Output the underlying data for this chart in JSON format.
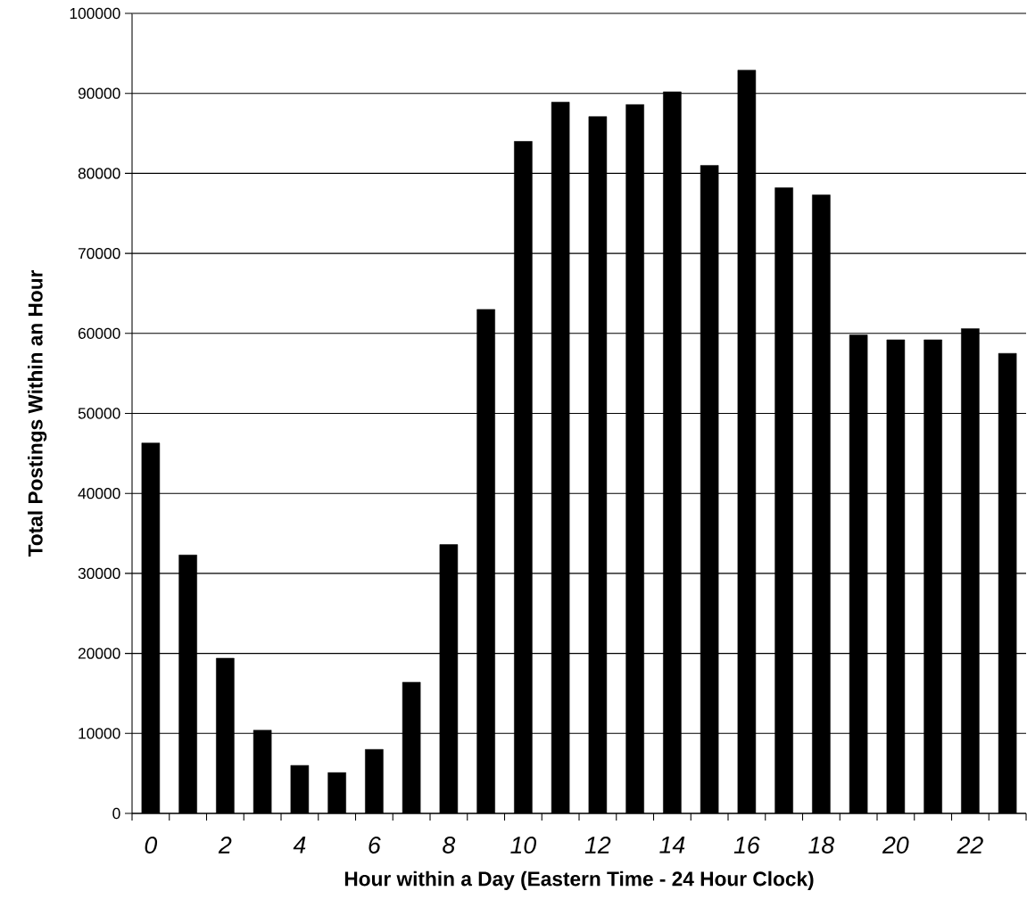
{
  "chart_data": {
    "type": "bar",
    "xlabel": "Hour within a Day (Eastern Time - 24 Hour Clock)",
    "ylabel": "Total Postings Within an Hour",
    "categories": [
      "0",
      null,
      "2",
      null,
      "4",
      null,
      "6",
      null,
      "8",
      null,
      "10",
      null,
      "12",
      null,
      "14",
      null,
      "16",
      null,
      "18",
      null,
      "20",
      null,
      "22",
      null
    ],
    "values": [
      46300,
      32300,
      19400,
      10400,
      6000,
      5100,
      8000,
      16400,
      33600,
      63000,
      84000,
      88900,
      87100,
      88600,
      90200,
      81000,
      92900,
      78200,
      77300,
      59800,
      59200,
      59200,
      60600,
      57500
    ],
    "color": "#000000",
    "ylim": [
      0,
      100000
    ],
    "yticks": [
      0,
      10000,
      20000,
      30000,
      40000,
      50000,
      60000,
      70000,
      80000,
      90000,
      100000
    ],
    "grid": "y"
  }
}
